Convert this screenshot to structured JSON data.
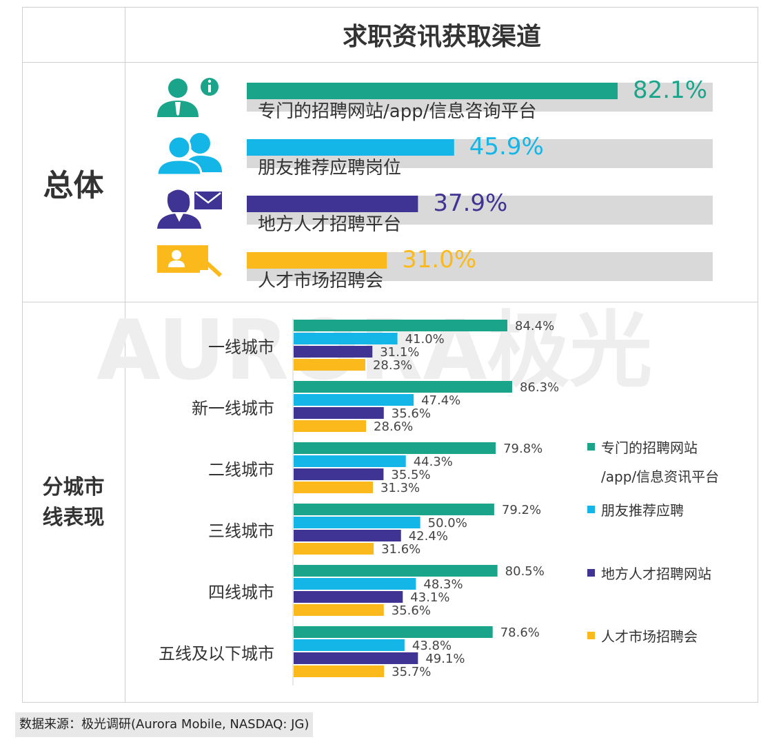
{
  "title": "求职资讯获取渠道",
  "sections": {
    "overall_label": "总体",
    "city_label_line1": "分城市",
    "city_label_line2": "线表现"
  },
  "colors": {
    "teal": "#1aa58a",
    "cyan": "#13b6e6",
    "purple": "#3f3393",
    "yellow": "#fbb91c",
    "track": "#d9d9d9"
  },
  "icons": [
    "info-person-icon",
    "two-people-icon",
    "woman-mail-icon",
    "id-card-icon"
  ],
  "watermark": "AURORA极光",
  "legend": [
    {
      "line1": "专门的招聘网站",
      "line2": "/app/信息资讯平台"
    },
    {
      "line1": "朋友推荐应聘"
    },
    {
      "line1": "地方人才招聘网站"
    },
    {
      "line1": "人才市场招聘会"
    }
  ],
  "chart_data": [
    {
      "type": "bar",
      "orientation": "horizontal",
      "title": "",
      "categories": [
        "专门的招聘网站/app/信息咨询平台",
        "朋友推荐应聘岗位",
        "地方人才招聘平台",
        "人才市场招聘会"
      ],
      "values": [
        82.1,
        45.9,
        37.9,
        31.0
      ],
      "labels": [
        "82.1%",
        "45.9%",
        "37.9%",
        "31.0%"
      ],
      "ylim": [
        0,
        100
      ]
    },
    {
      "type": "bar",
      "orientation": "horizontal",
      "categories": [
        "一线城市",
        "新一线城市",
        "二线城市",
        "三线城市",
        "四线城市",
        "五线及以下城市"
      ],
      "series": [
        {
          "name": "专门的招聘网站/app/信息资讯平台",
          "values": [
            84.4,
            86.3,
            79.8,
            79.2,
            80.5,
            78.6
          ],
          "labels": [
            "84.4%",
            "86.3%",
            "79.8%",
            "79.2%",
            "80.5%",
            "78.6%"
          ]
        },
        {
          "name": "朋友推荐应聘",
          "values": [
            41.0,
            47.4,
            44.3,
            50.0,
            48.3,
            43.8
          ],
          "labels": [
            "41.0%",
            "47.4%",
            "44.3%",
            "50.0%",
            "48.3%",
            "43.8%"
          ]
        },
        {
          "name": "地方人才招聘网站",
          "values": [
            31.1,
            35.6,
            35.5,
            42.4,
            43.1,
            49.1
          ],
          "labels": [
            "31.1%",
            "35.6%",
            "35.5%",
            "42.4%",
            "43.1%",
            "49.1%"
          ]
        },
        {
          "name": "人才市场招聘会",
          "values": [
            28.3,
            28.6,
            31.3,
            31.6,
            35.6,
            35.7
          ],
          "labels": [
            "28.3%",
            "28.6%",
            "31.3%",
            "31.6%",
            "35.6%",
            "35.7%"
          ]
        }
      ],
      "legend_position": "right"
    }
  ],
  "source": "数据来源：极光调研(Aurora Mobile, NASDAQ: JG)"
}
